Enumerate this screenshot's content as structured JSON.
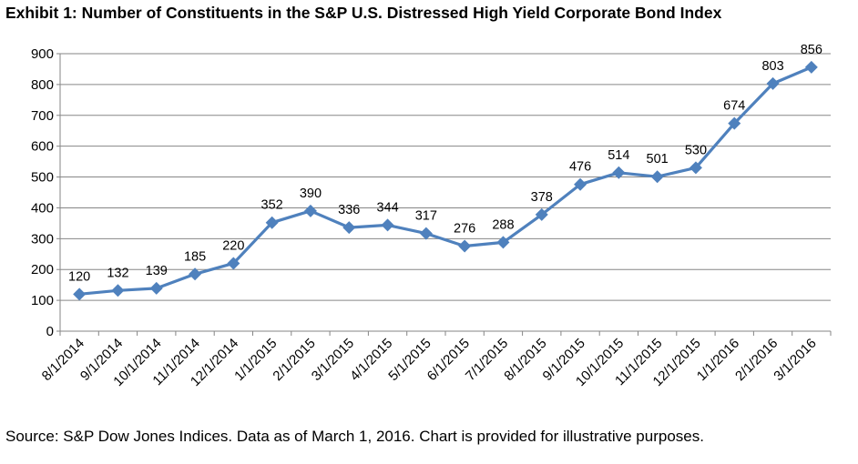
{
  "chart_data": {
    "type": "line",
    "title": "Exhibit 1: Number of Constituents in the S&P U.S. Distressed High Yield Corporate Bond Index",
    "xlabel": "",
    "ylabel": "",
    "ylim": [
      0,
      900
    ],
    "yticks": [
      0,
      100,
      200,
      300,
      400,
      500,
      600,
      700,
      800,
      900
    ],
    "grid": true,
    "categories": [
      "8/1/2014",
      "9/1/2014",
      "10/1/2014",
      "11/1/2014",
      "12/1/2014",
      "1/1/2015",
      "2/1/2015",
      "3/1/2015",
      "4/1/2015",
      "5/1/2015",
      "6/1/2015",
      "7/1/2015",
      "8/1/2015",
      "9/1/2015",
      "10/1/2015",
      "11/1/2015",
      "12/1/2015",
      "1/1/2016",
      "2/1/2016",
      "3/1/2016"
    ],
    "series": [
      {
        "values": [
          120,
          132,
          139,
          185,
          220,
          352,
          390,
          336,
          344,
          317,
          276,
          288,
          378,
          476,
          514,
          501,
          530,
          674,
          803,
          856
        ],
        "color": "#4f81bd",
        "marker": "diamond"
      }
    ]
  },
  "source_note": "Source: S&P Dow Jones Indices.  Data as of March 1, 2016.  Chart is provided for illustrative purposes."
}
